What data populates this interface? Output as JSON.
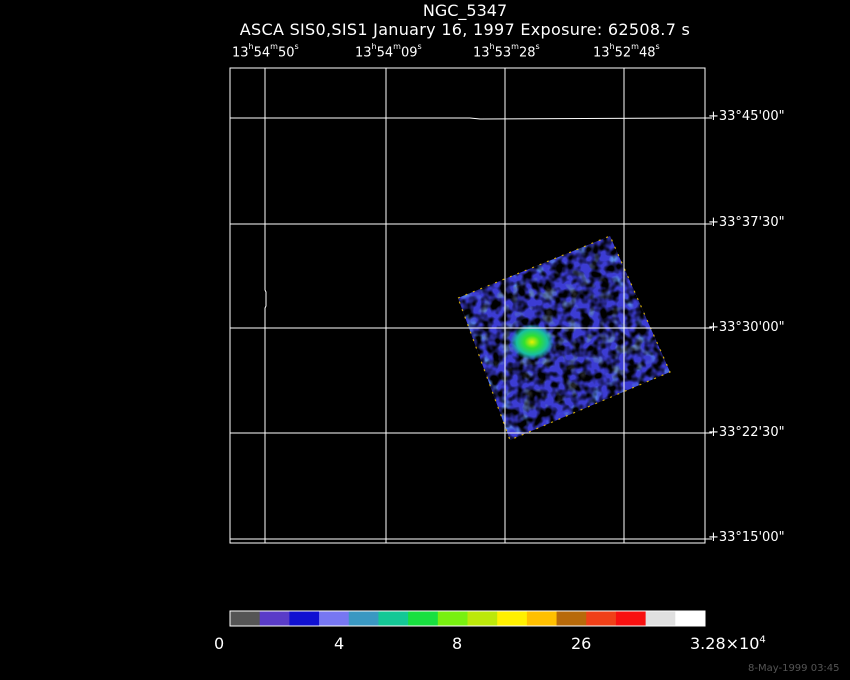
{
  "title": "NGC_5347",
  "subtitle": "ASCA SIS0,SIS1 January 16, 1997 Exposure: 62508.7 s",
  "ra_labels": [
    {
      "h": "13",
      "m": "54",
      "s": "50"
    },
    {
      "h": "13",
      "m": "54",
      "s": "09"
    },
    {
      "h": "13",
      "m": "53",
      "s": "28"
    },
    {
      "h": "13",
      "m": "52",
      "s": "48"
    }
  ],
  "dec_labels": [
    "+33°45'00\"",
    "+33°37'30\"",
    "+33°30'00\"",
    "+33°22'30\"",
    "+33°15'00\""
  ],
  "colorbar": {
    "colors": [
      "#555555",
      "#5a3cc8",
      "#1010d2",
      "#7777f2",
      "#3a98c2",
      "#14c896",
      "#18e040",
      "#78f010",
      "#bce80a",
      "#fff000",
      "#ffc000",
      "#b86a0a",
      "#f04018",
      "#f81010",
      "#e0e0e0",
      "#ffffff"
    ],
    "labels": [
      "0",
      "4",
      "8",
      "26"
    ],
    "max_label": {
      "mantissa": "3.28×10",
      "exponent": "4"
    }
  },
  "timestamp": "8-May-1999 03:45"
}
